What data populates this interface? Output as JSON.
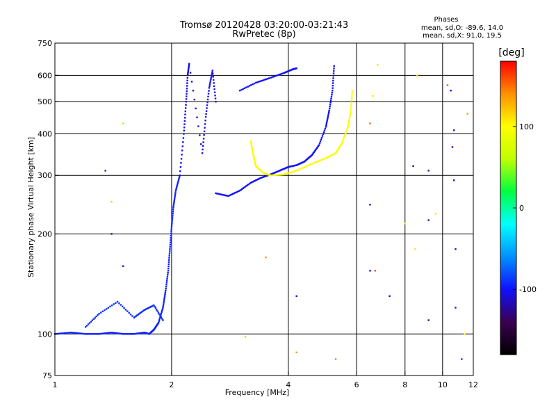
{
  "chart_data": {
    "type": "scatter",
    "title": "Tromsø 20120428 03:20:00-03:21:43",
    "subtitle": "RwPretec (8p)",
    "phases_box": {
      "title": "Phases",
      "line1": "mean, sd,O: -89.6, 14.0",
      "line2": "mean, sd,X:  91.0, 19.5"
    },
    "xlabel": "Frequency [MHz]",
    "ylabel": "Stationary phase Virtual Height [km]",
    "x_scale": "log",
    "y_scale": "log",
    "xlim": [
      1,
      12
    ],
    "ylim": [
      75,
      750
    ],
    "x_ticks": [
      {
        "value": 1,
        "label": "1"
      },
      {
        "value": 2,
        "label": "2"
      },
      {
        "value": 4,
        "label": "4"
      },
      {
        "value": 6,
        "label": "6"
      },
      {
        "value": 8,
        "label": "8"
      },
      {
        "value": 10,
        "label": "10"
      },
      {
        "value": 12,
        "label": "12"
      }
    ],
    "x_gridlines": [
      2,
      4,
      6,
      8,
      10
    ],
    "y_ticks": [
      {
        "value": 75,
        "label": "75"
      },
      {
        "value": 100,
        "label": "100"
      },
      {
        "value": 200,
        "label": "200"
      },
      {
        "value": 300,
        "label": "300"
      },
      {
        "value": 400,
        "label": "400"
      },
      {
        "value": 500,
        "label": "500"
      },
      {
        "value": 600,
        "label": "600"
      },
      {
        "value": 750,
        "label": "750"
      }
    ],
    "y_gridlines": [
      100,
      200,
      300,
      400,
      500,
      600
    ],
    "colorbar": {
      "label": "[deg]",
      "range": [
        -180,
        180
      ],
      "ticks": [
        {
          "value": 100,
          "label": "100"
        },
        {
          "value": 0,
          "label": "0"
        },
        {
          "value": -100,
          "label": "-100"
        }
      ],
      "colors": [
        "#000000",
        "#3a0050",
        "#1010ff",
        "#0090ff",
        "#00ffff",
        "#00ff40",
        "#c0ff00",
        "#ffff00",
        "#ff9000",
        "#ff0000"
      ]
    },
    "traces": [
      {
        "name": "o_ray_E",
        "phase": -95,
        "points": [
          [
            1.0,
            100
          ],
          [
            1.1,
            101
          ],
          [
            1.2,
            100
          ],
          [
            1.3,
            100
          ],
          [
            1.4,
            101
          ],
          [
            1.5,
            100
          ],
          [
            1.6,
            100
          ],
          [
            1.7,
            101
          ],
          [
            1.75,
            100
          ],
          [
            1.8,
            103
          ],
          [
            1.85,
            108
          ],
          [
            1.9,
            120
          ],
          [
            1.93,
            135
          ],
          [
            1.96,
            155
          ],
          [
            1.98,
            180
          ],
          [
            2.0,
            210
          ],
          [
            2.02,
            240
          ],
          [
            2.05,
            270
          ],
          [
            2.1,
            300
          ]
        ]
      },
      {
        "name": "o_ray_F_low",
        "phase": -100,
        "points": [
          [
            2.6,
            265
          ],
          [
            2.8,
            260
          ],
          [
            3.0,
            270
          ],
          [
            3.2,
            285
          ],
          [
            3.4,
            295
          ],
          [
            3.6,
            302
          ],
          [
            3.8,
            310
          ],
          [
            4.0,
            318
          ],
          [
            4.2,
            322
          ],
          [
            4.4,
            330
          ],
          [
            4.6,
            345
          ],
          [
            4.8,
            370
          ],
          [
            5.0,
            420
          ],
          [
            5.1,
            470
          ],
          [
            5.2,
            540
          ],
          [
            5.25,
            640
          ]
        ]
      },
      {
        "name": "x_ray_F_low",
        "phase": 95,
        "points": [
          [
            3.2,
            380
          ],
          [
            3.25,
            345
          ],
          [
            3.3,
            320
          ],
          [
            3.45,
            305
          ],
          [
            3.6,
            300
          ],
          [
            3.9,
            302
          ],
          [
            4.2,
            310
          ],
          [
            4.6,
            325
          ],
          [
            5.0,
            338
          ],
          [
            5.3,
            350
          ],
          [
            5.5,
            375
          ],
          [
            5.7,
            420
          ],
          [
            5.8,
            470
          ],
          [
            5.85,
            540
          ]
        ]
      },
      {
        "name": "o_ray_F_upper",
        "phase": -100,
        "points": [
          [
            3.0,
            540
          ],
          [
            3.3,
            570
          ],
          [
            3.6,
            590
          ],
          [
            3.9,
            610
          ],
          [
            4.1,
            625
          ],
          [
            4.2,
            630
          ]
        ]
      },
      {
        "name": "spread_F_column",
        "phase": -105,
        "points": [
          [
            2.1,
            300
          ],
          [
            2.15,
            400
          ],
          [
            2.18,
            500
          ],
          [
            2.2,
            600
          ],
          [
            2.22,
            650
          ],
          [
            2.4,
            350
          ],
          [
            2.45,
            450
          ],
          [
            2.5,
            550
          ],
          [
            2.55,
            620
          ],
          [
            2.6,
            500
          ]
        ]
      },
      {
        "name": "low_scatter",
        "phase": -90,
        "points": [
          [
            1.2,
            105
          ],
          [
            1.3,
            115
          ],
          [
            1.45,
            125
          ],
          [
            1.6,
            112
          ],
          [
            1.7,
            118
          ],
          [
            1.8,
            122
          ],
          [
            1.9,
            110
          ]
        ]
      }
    ],
    "scatter_points": [
      {
        "x": 1.35,
        "y": 310,
        "phase": -120
      },
      {
        "x": 1.4,
        "y": 250,
        "phase": 120
      },
      {
        "x": 1.5,
        "y": 430,
        "phase": 50
      },
      {
        "x": 1.4,
        "y": 200,
        "phase": -110
      },
      {
        "x": 1.5,
        "y": 160,
        "phase": -100
      },
      {
        "x": 3.1,
        "y": 98,
        "phase": 120
      },
      {
        "x": 3.5,
        "y": 170,
        "phase": 140
      },
      {
        "x": 4.2,
        "y": 130,
        "phase": -110
      },
      {
        "x": 4.2,
        "y": 88,
        "phase": 140
      },
      {
        "x": 5.3,
        "y": 84,
        "phase": 145
      },
      {
        "x": 6.5,
        "y": 430,
        "phase": 150
      },
      {
        "x": 6.6,
        "y": 520,
        "phase": 110
      },
      {
        "x": 6.5,
        "y": 245,
        "phase": -110
      },
      {
        "x": 6.5,
        "y": 155,
        "phase": -105
      },
      {
        "x": 6.7,
        "y": 155,
        "phase": 160
      },
      {
        "x": 6.8,
        "y": 645,
        "phase": 110
      },
      {
        "x": 7.3,
        "y": 130,
        "phase": -110
      },
      {
        "x": 8.0,
        "y": 215,
        "phase": 100
      },
      {
        "x": 8.4,
        "y": 320,
        "phase": -110
      },
      {
        "x": 8.5,
        "y": 180,
        "phase": 110
      },
      {
        "x": 8.6,
        "y": 598,
        "phase": 110
      },
      {
        "x": 9.2,
        "y": 310,
        "phase": -120
      },
      {
        "x": 9.2,
        "y": 220,
        "phase": -125
      },
      {
        "x": 9.2,
        "y": 110,
        "phase": -120
      },
      {
        "x": 9.6,
        "y": 230,
        "phase": 110
      },
      {
        "x": 10.3,
        "y": 560,
        "phase": 160
      },
      {
        "x": 10.5,
        "y": 540,
        "phase": -110
      },
      {
        "x": 10.7,
        "y": 410,
        "phase": -110
      },
      {
        "x": 10.6,
        "y": 365,
        "phase": -110
      },
      {
        "x": 10.7,
        "y": 290,
        "phase": -100
      },
      {
        "x": 10.8,
        "y": 180,
        "phase": -110
      },
      {
        "x": 10.8,
        "y": 120,
        "phase": -110
      },
      {
        "x": 11.4,
        "y": 100,
        "phase": 100
      },
      {
        "x": 11.2,
        "y": 84,
        "phase": -90
      },
      {
        "x": 11.6,
        "y": 460,
        "phase": 140
      }
    ]
  }
}
